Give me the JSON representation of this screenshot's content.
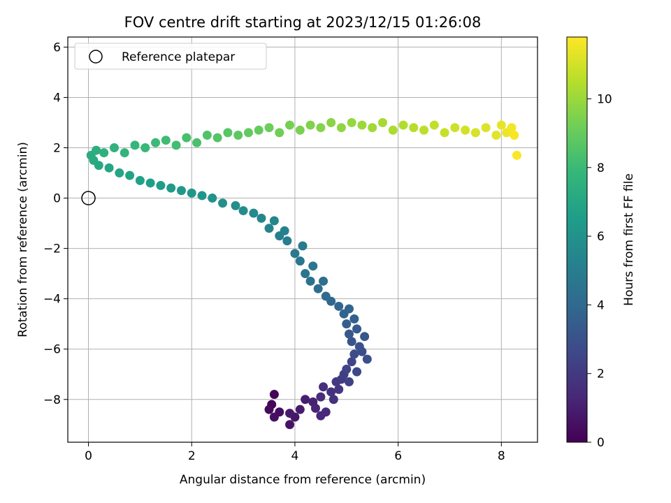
{
  "chart_data": {
    "type": "scatter",
    "title": "FOV centre drift starting at 2023/12/15 01:26:08",
    "xlabel": "Angular distance from reference (arcmin)",
    "ylabel": "Rotation from reference (arcmin)",
    "xlim": [
      -0.4,
      8.7
    ],
    "ylim": [
      -9.7,
      6.4
    ],
    "x_ticks": [
      0,
      2,
      4,
      6,
      8
    ],
    "y_ticks": [
      -8,
      -6,
      -4,
      -2,
      0,
      2,
      4,
      6
    ],
    "x_tick_labels": [
      "0",
      "2",
      "4",
      "6",
      "8"
    ],
    "y_tick_labels": [
      "−8",
      "−6",
      "−4",
      "−2",
      "0",
      "2",
      "4",
      "6"
    ],
    "grid": true,
    "legend": {
      "position": "top-left",
      "entries": [
        "Reference platepar"
      ]
    },
    "reference_point": {
      "x": 0,
      "y": 0,
      "label": "Reference platepar"
    },
    "colorbar": {
      "label": "Hours from first FF file",
      "range": [
        0,
        11.8
      ],
      "ticks": [
        0,
        2,
        4,
        6,
        8,
        10
      ],
      "tick_labels": [
        "0",
        "2",
        "4",
        "6",
        "8",
        "10"
      ],
      "colormap": "viridis",
      "stops": [
        "#440154",
        "#482878",
        "#3e4989",
        "#31688e",
        "#26828e",
        "#1f9e89",
        "#35b779",
        "#6ece58",
        "#b5de2b",
        "#fde725"
      ]
    },
    "series": [
      {
        "points": [
          [
            3.6,
            -7.8,
            0.1
          ],
          [
            3.55,
            -8.2,
            0.2
          ],
          [
            3.5,
            -8.4,
            0.3
          ],
          [
            3.7,
            -8.5,
            0.4
          ],
          [
            3.6,
            -8.7,
            0.5
          ],
          [
            3.9,
            -9.0,
            0.6
          ],
          [
            4.0,
            -8.7,
            0.7
          ],
          [
            3.9,
            -8.55,
            0.8
          ],
          [
            4.1,
            -8.4,
            0.9
          ],
          [
            4.2,
            -8.0,
            1.0
          ],
          [
            4.35,
            -8.1,
            1.1
          ],
          [
            4.4,
            -8.35,
            1.2
          ],
          [
            4.5,
            -8.65,
            1.3
          ],
          [
            4.6,
            -8.5,
            1.4
          ],
          [
            4.5,
            -7.9,
            1.5
          ],
          [
            4.55,
            -7.5,
            1.6
          ],
          [
            4.7,
            -7.7,
            1.7
          ],
          [
            4.75,
            -8.0,
            1.8
          ],
          [
            4.85,
            -7.6,
            1.9
          ],
          [
            4.8,
            -7.3,
            2.0
          ],
          [
            4.9,
            -7.2,
            2.1
          ],
          [
            4.95,
            -7.0,
            2.2
          ],
          [
            5.05,
            -7.3,
            2.3
          ],
          [
            5.0,
            -6.8,
            2.4
          ],
          [
            5.1,
            -6.5,
            2.5
          ],
          [
            5.2,
            -6.9,
            2.6
          ],
          [
            5.15,
            -6.2,
            2.7
          ],
          [
            5.3,
            -6.1,
            2.8
          ],
          [
            5.4,
            -6.4,
            2.9
          ],
          [
            5.25,
            -5.9,
            3.0
          ],
          [
            5.1,
            -5.7,
            3.1
          ],
          [
            5.35,
            -5.5,
            3.2
          ],
          [
            5.05,
            -5.4,
            3.3
          ],
          [
            5.2,
            -5.2,
            3.4
          ],
          [
            5.0,
            -5.0,
            3.5
          ],
          [
            5.15,
            -4.8,
            3.6
          ],
          [
            4.95,
            -4.6,
            3.7
          ],
          [
            5.05,
            -4.4,
            3.8
          ],
          [
            4.85,
            -4.3,
            3.9
          ],
          [
            4.7,
            -4.1,
            4.0
          ],
          [
            4.6,
            -3.9,
            4.1
          ],
          [
            4.45,
            -3.6,
            4.2
          ],
          [
            4.55,
            -3.3,
            4.3
          ],
          [
            4.3,
            -3.3,
            4.4
          ],
          [
            4.2,
            -3.0,
            4.5
          ],
          [
            4.35,
            -2.7,
            4.6
          ],
          [
            4.1,
            -2.5,
            4.7
          ],
          [
            4.0,
            -2.2,
            4.8
          ],
          [
            4.15,
            -1.9,
            4.9
          ],
          [
            3.85,
            -1.7,
            5.0
          ],
          [
            3.7,
            -1.5,
            5.1
          ],
          [
            3.8,
            -1.3,
            5.2
          ],
          [
            3.5,
            -1.2,
            5.3
          ],
          [
            3.6,
            -0.9,
            5.4
          ],
          [
            3.35,
            -0.8,
            5.5
          ],
          [
            3.2,
            -0.6,
            5.6
          ],
          [
            3.0,
            -0.5,
            5.7
          ],
          [
            2.85,
            -0.3,
            5.8
          ],
          [
            2.6,
            -0.2,
            5.9
          ],
          [
            2.4,
            0.0,
            6.0
          ],
          [
            2.2,
            0.1,
            6.1
          ],
          [
            2.0,
            0.2,
            6.2
          ],
          [
            1.8,
            0.3,
            6.3
          ],
          [
            1.6,
            0.4,
            6.4
          ],
          [
            1.4,
            0.5,
            6.5
          ],
          [
            1.2,
            0.6,
            6.6
          ],
          [
            1.0,
            0.7,
            6.7
          ],
          [
            0.8,
            0.9,
            6.8
          ],
          [
            0.6,
            1.0,
            6.9
          ],
          [
            0.4,
            1.2,
            7.0
          ],
          [
            0.2,
            1.3,
            7.1
          ],
          [
            0.1,
            1.5,
            7.2
          ],
          [
            0.05,
            1.7,
            7.3
          ],
          [
            0.15,
            1.9,
            7.4
          ],
          [
            0.3,
            1.8,
            7.5
          ],
          [
            0.5,
            2.0,
            7.6
          ],
          [
            0.7,
            1.8,
            7.7
          ],
          [
            0.9,
            2.1,
            7.8
          ],
          [
            1.1,
            2.0,
            7.9
          ],
          [
            1.3,
            2.2,
            8.0
          ],
          [
            1.5,
            2.3,
            8.1
          ],
          [
            1.7,
            2.1,
            8.2
          ],
          [
            1.9,
            2.4,
            8.3
          ],
          [
            2.1,
            2.2,
            8.4
          ],
          [
            2.3,
            2.5,
            8.5
          ],
          [
            2.5,
            2.4,
            8.6
          ],
          [
            2.7,
            2.6,
            8.7
          ],
          [
            2.9,
            2.5,
            8.8
          ],
          [
            3.1,
            2.6,
            8.9
          ],
          [
            3.3,
            2.7,
            9.0
          ],
          [
            3.5,
            2.8,
            9.1
          ],
          [
            3.7,
            2.6,
            9.2
          ],
          [
            3.9,
            2.9,
            9.3
          ],
          [
            4.1,
            2.7,
            9.4
          ],
          [
            4.3,
            2.9,
            9.5
          ],
          [
            4.5,
            2.8,
            9.6
          ],
          [
            4.7,
            3.0,
            9.7
          ],
          [
            4.9,
            2.8,
            9.8
          ],
          [
            5.1,
            3.0,
            9.9
          ],
          [
            5.3,
            2.9,
            10.0
          ],
          [
            5.5,
            2.8,
            10.1
          ],
          [
            5.7,
            3.0,
            10.2
          ],
          [
            5.9,
            2.7,
            10.3
          ],
          [
            6.1,
            2.9,
            10.4
          ],
          [
            6.3,
            2.8,
            10.5
          ],
          [
            6.5,
            2.7,
            10.6
          ],
          [
            6.7,
            2.9,
            10.7
          ],
          [
            6.9,
            2.6,
            10.8
          ],
          [
            7.1,
            2.8,
            10.9
          ],
          [
            7.3,
            2.7,
            11.0
          ],
          [
            7.5,
            2.6,
            11.1
          ],
          [
            7.7,
            2.8,
            11.2
          ],
          [
            7.9,
            2.5,
            11.3
          ],
          [
            8.0,
            2.9,
            11.4
          ],
          [
            8.1,
            2.6,
            11.5
          ],
          [
            8.2,
            2.8,
            11.6
          ],
          [
            8.25,
            2.5,
            11.7
          ],
          [
            8.3,
            1.7,
            11.75
          ]
        ]
      }
    ]
  }
}
